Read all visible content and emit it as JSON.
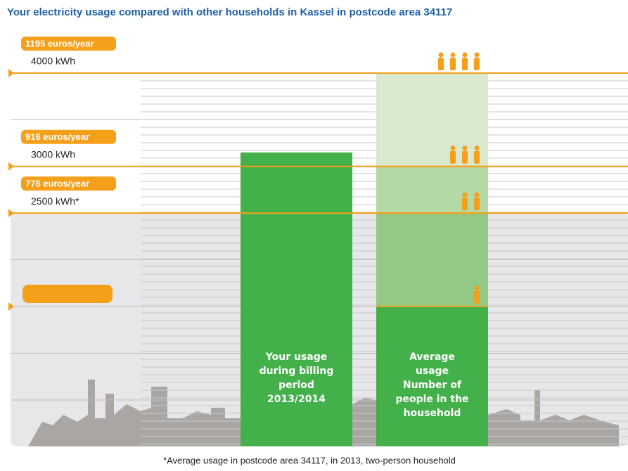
{
  "chart_data": {
    "type": "bar",
    "title": "Your electricity usage compared with other households in Kassel in postcode area 34117",
    "footnote": "*Average usage in postcode area 34117, in 2013, two-person household",
    "ylim": [
      0,
      4000
    ],
    "yticks": [
      {
        "value": 4000,
        "label": "4000 kWh"
      },
      {
        "value": 3000,
        "label": "3000 kWh"
      },
      {
        "value": 2500,
        "label": "2500 kWh*"
      }
    ],
    "cost_labels": [
      "1195 euros/year",
      "916 euros/year",
      "776 euros/year"
    ],
    "bars": [
      {
        "label": "Your usage during billing period 2013/2014",
        "colors": [
          "#43b04a"
        ],
        "values": [
          3150
        ]
      },
      {
        "label": "Average usage Number of people in the household",
        "colors": [
          "#d8e9cf",
          "#b5d9a4",
          "#93c985",
          "#43b04a"
        ],
        "values": [
          4000,
          3000,
          2500,
          1500
        ],
        "people": [
          4,
          3,
          2,
          1
        ]
      }
    ]
  }
}
